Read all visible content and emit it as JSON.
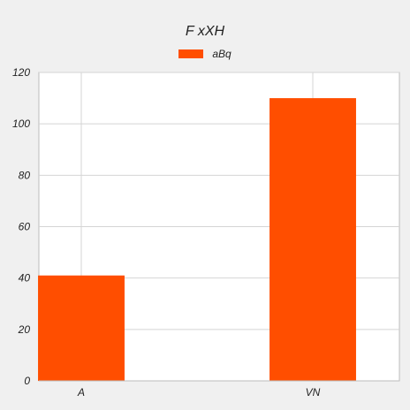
{
  "colors": {
    "series": "#ff4e00",
    "grid": "#d4d4d4",
    "axis": "#bdbdbd",
    "plot_bg": "#ffffff",
    "page_bg": "#f0f0f0"
  },
  "chart_data": {
    "type": "bar",
    "title": "F xXH",
    "legend_position": "top",
    "categories": [
      "A",
      "VN"
    ],
    "series": [
      {
        "name": "aBq",
        "values": [
          41,
          110
        ]
      }
    ],
    "ylim": [
      0,
      120
    ],
    "yticks": [
      0,
      20,
      40,
      60,
      80,
      100,
      120
    ],
    "grid": true
  }
}
